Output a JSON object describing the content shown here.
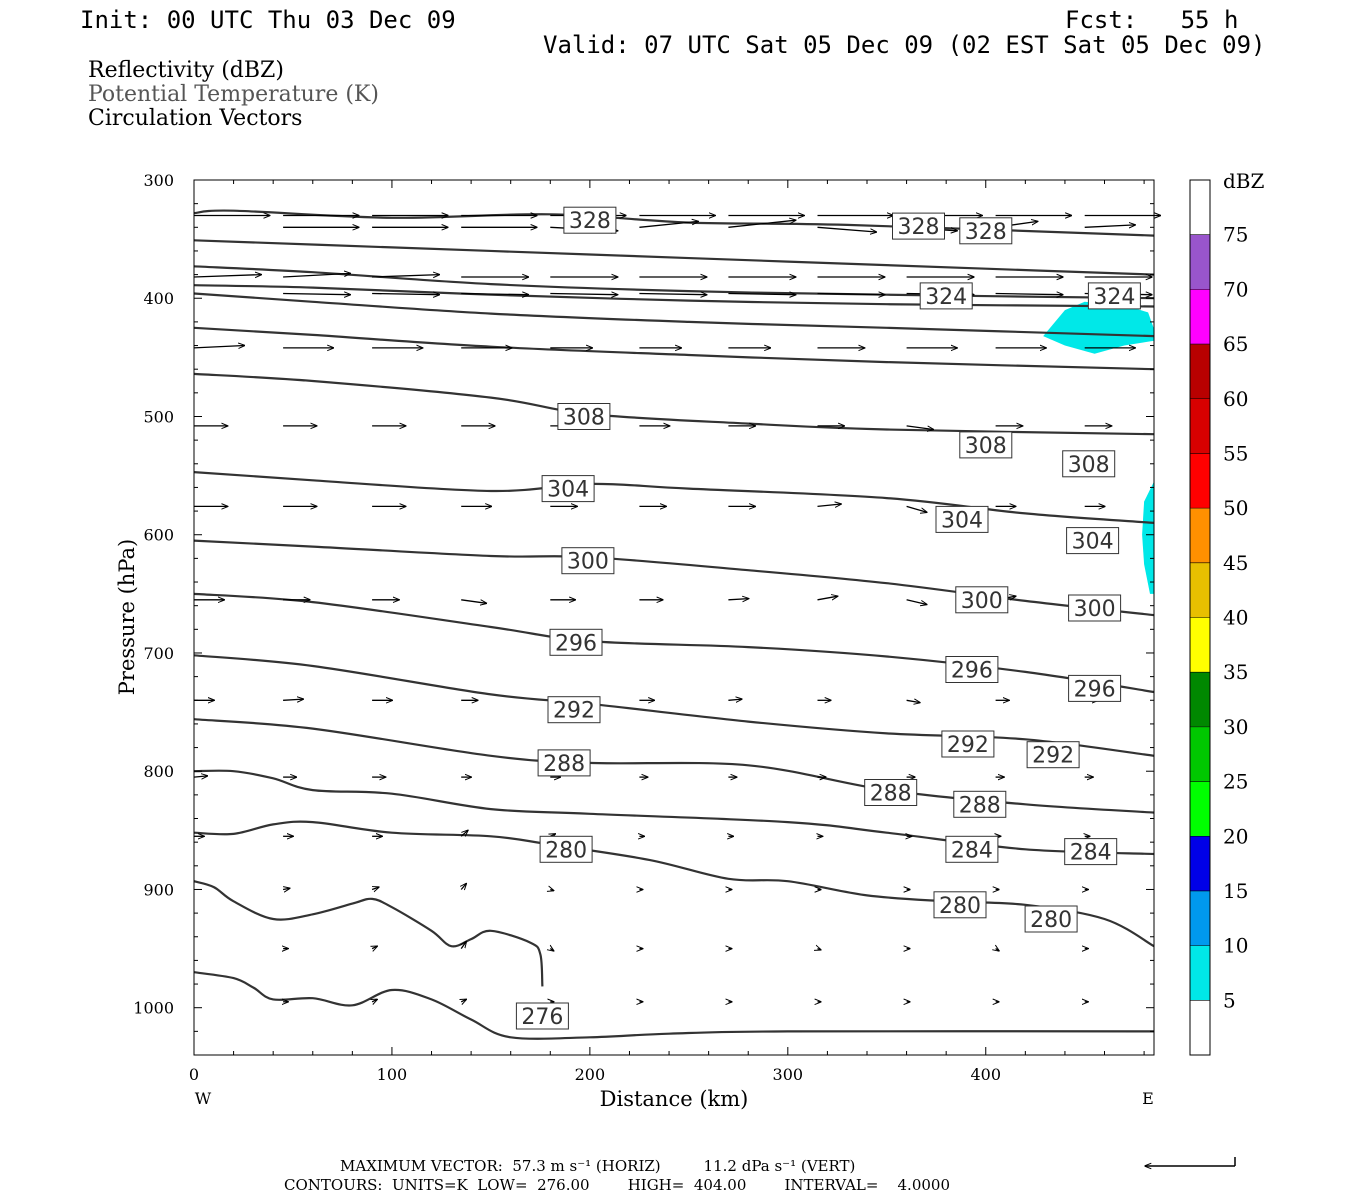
{
  "header": {
    "init": "Init: 00 UTC Thu 03 Dec 09",
    "fcst": "Fcst:   55 h",
    "valid": "Valid: 07 UTC Sat 05 Dec 09 (02 EST Sat 05 Dec 09)"
  },
  "fields": [
    "Reflectivity (dBZ)",
    "Potential Temperature (K)",
    "Circulation Vectors"
  ],
  "footer": {
    "max_vector": "MAXIMUM VECTOR:  57.3 m s⁻¹ (HORIZ)         11.2 dPa s⁻¹ (VERT)",
    "contours": "CONTOURS:  UNITS=K  LOW=  276.00        HIGH=  404.00        INTERVAL=    4.0000"
  },
  "colors": {
    "contour": "#333333",
    "reflectivity_5": "#00e8e8"
  },
  "chart_data": {
    "type": "cross-section",
    "xlabel": "Distance (km)",
    "ylabel": "Pressure (hPa)",
    "xlim": [
      0,
      485
    ],
    "ylim": [
      300,
      1040
    ],
    "x_ticks": [
      0,
      100,
      200,
      300,
      400
    ],
    "y_ticks": [
      300,
      400,
      500,
      600,
      700,
      800,
      900,
      1000
    ],
    "x_end_labels": [
      "W",
      "E"
    ],
    "colorbar": {
      "title": "dBZ",
      "labels": [
        "5",
        "10",
        "15",
        "20",
        "25",
        "30",
        "35",
        "40",
        "45",
        "50",
        "55",
        "60",
        "65",
        "70",
        "75"
      ],
      "colors": [
        "#ffffff",
        "#00e8e8",
        "#0099ee",
        "#0000e8",
        "#00ff00",
        "#00c800",
        "#008800",
        "#ffff00",
        "#e8c000",
        "#ff9000",
        "#ff0000",
        "#d80000",
        "#b80000",
        "#ff00ff",
        "#9955cc",
        "#ffffff"
      ]
    },
    "contour_labels": [
      {
        "text": "328",
        "x": 200,
        "p": 334
      },
      {
        "text": "328",
        "x": 366,
        "p": 339
      },
      {
        "text": "328",
        "x": 400,
        "p": 343
      },
      {
        "text": "324",
        "x": 380,
        "p": 398
      },
      {
        "text": "324",
        "x": 465,
        "p": 398
      },
      {
        "text": "308",
        "x": 197,
        "p": 500
      },
      {
        "text": "308",
        "x": 400,
        "p": 524
      },
      {
        "text": "308",
        "x": 452,
        "p": 540
      },
      {
        "text": "304",
        "x": 189,
        "p": 561
      },
      {
        "text": "304",
        "x": 388,
        "p": 587
      },
      {
        "text": "304",
        "x": 454,
        "p": 605
      },
      {
        "text": "300",
        "x": 199,
        "p": 622
      },
      {
        "text": "300",
        "x": 398,
        "p": 655
      },
      {
        "text": "300",
        "x": 455,
        "p": 662
      },
      {
        "text": "296",
        "x": 193,
        "p": 691
      },
      {
        "text": "296",
        "x": 393,
        "p": 714
      },
      {
        "text": "296",
        "x": 455,
        "p": 730
      },
      {
        "text": "292",
        "x": 192,
        "p": 748
      },
      {
        "text": "292",
        "x": 391,
        "p": 777
      },
      {
        "text": "292",
        "x": 434,
        "p": 786
      },
      {
        "text": "288",
        "x": 187,
        "p": 793
      },
      {
        "text": "288",
        "x": 352,
        "p": 818
      },
      {
        "text": "288",
        "x": 397,
        "p": 828
      },
      {
        "text": "280",
        "x": 188,
        "p": 866
      },
      {
        "text": "284",
        "x": 393,
        "p": 866
      },
      {
        "text": "284",
        "x": 453,
        "p": 868
      },
      {
        "text": "280",
        "x": 387,
        "p": 913
      },
      {
        "text": "280",
        "x": 433,
        "p": 925
      },
      {
        "text": "276",
        "x": 176,
        "p": 1007
      }
    ],
    "isentropes": [
      [
        [
          0,
          328
        ],
        [
          20,
          326
        ],
        [
          100,
          332
        ],
        [
          180,
          329
        ],
        [
          250,
          336
        ],
        [
          330,
          338
        ],
        [
          485,
          347
        ]
      ],
      [
        [
          0,
          351
        ],
        [
          100,
          357
        ],
        [
          200,
          363
        ],
        [
          300,
          369
        ],
        [
          400,
          375
        ],
        [
          485,
          380
        ]
      ],
      [
        [
          0,
          373
        ],
        [
          60,
          378
        ],
        [
          150,
          388
        ],
        [
          250,
          394
        ],
        [
          350,
          397
        ],
        [
          485,
          400
        ]
      ],
      [
        [
          0,
          389
        ],
        [
          60,
          391
        ],
        [
          150,
          397
        ],
        [
          250,
          402
        ],
        [
          350,
          405
        ],
        [
          485,
          407
        ]
      ],
      [
        [
          0,
          396
        ],
        [
          60,
          403
        ],
        [
          150,
          413
        ],
        [
          250,
          420
        ],
        [
          350,
          425
        ],
        [
          485,
          432
        ]
      ],
      [
        [
          0,
          425
        ],
        [
          60,
          431
        ],
        [
          150,
          441
        ],
        [
          250,
          448
        ],
        [
          350,
          454
        ],
        [
          485,
          460
        ]
      ],
      [
        [
          0,
          464
        ],
        [
          60,
          470
        ],
        [
          150,
          484
        ],
        [
          200,
          498
        ],
        [
          280,
          506
        ],
        [
          350,
          511
        ],
        [
          485,
          515
        ]
      ],
      [
        [
          0,
          547
        ],
        [
          60,
          554
        ],
        [
          150,
          563
        ],
        [
          200,
          557
        ],
        [
          250,
          561
        ],
        [
          350,
          569
        ],
        [
          420,
          582
        ],
        [
          485,
          590
        ]
      ],
      [
        [
          0,
          605
        ],
        [
          60,
          610
        ],
        [
          150,
          618
        ],
        [
          200,
          619
        ],
        [
          280,
          630
        ],
        [
          350,
          641
        ],
        [
          420,
          656
        ],
        [
          485,
          668
        ]
      ],
      [
        [
          0,
          650
        ],
        [
          60,
          657
        ],
        [
          150,
          678
        ],
        [
          200,
          690
        ],
        [
          280,
          695
        ],
        [
          350,
          703
        ],
        [
          420,
          716
        ],
        [
          485,
          733
        ]
      ],
      [
        [
          0,
          702
        ],
        [
          60,
          711
        ],
        [
          150,
          735
        ],
        [
          200,
          743
        ],
        [
          280,
          758
        ],
        [
          350,
          768
        ],
        [
          420,
          773
        ],
        [
          485,
          787
        ]
      ],
      [
        [
          0,
          756
        ],
        [
          60,
          764
        ],
        [
          150,
          787
        ],
        [
          200,
          793
        ],
        [
          280,
          795
        ],
        [
          350,
          816
        ],
        [
          420,
          828
        ],
        [
          485,
          835
        ]
      ],
      [
        [
          0,
          800
        ],
        [
          20,
          800
        ],
        [
          40,
          806
        ],
        [
          60,
          816
        ],
        [
          100,
          819
        ],
        [
          150,
          832
        ],
        [
          200,
          836
        ],
        [
          300,
          843
        ],
        [
          350,
          852
        ],
        [
          420,
          866
        ],
        [
          485,
          870
        ]
      ],
      [
        [
          0,
          852
        ],
        [
          20,
          853
        ],
        [
          40,
          845
        ],
        [
          60,
          843
        ],
        [
          100,
          852
        ],
        [
          150,
          855
        ],
        [
          180,
          862
        ],
        [
          230,
          875
        ],
        [
          270,
          891
        ],
        [
          300,
          893
        ],
        [
          340,
          905
        ],
        [
          380,
          910
        ],
        [
          420,
          913
        ],
        [
          460,
          925
        ],
        [
          485,
          948
        ]
      ],
      [
        [
          0,
          893
        ],
        [
          10,
          898
        ],
        [
          20,
          910
        ],
        [
          40,
          925
        ],
        [
          60,
          921
        ],
        [
          80,
          912
        ],
        [
          90,
          908
        ],
        [
          100,
          915
        ],
        [
          120,
          935
        ],
        [
          130,
          948
        ],
        [
          140,
          942
        ],
        [
          150,
          935
        ],
        [
          170,
          945
        ],
        [
          175,
          955
        ],
        [
          176,
          982
        ]
      ],
      [
        [
          0,
          970
        ],
        [
          20,
          975
        ],
        [
          30,
          983
        ],
        [
          40,
          993
        ],
        [
          60,
          992
        ],
        [
          80,
          998
        ],
        [
          100,
          985
        ],
        [
          120,
          993
        ],
        [
          140,
          1010
        ],
        [
          160,
          1025
        ],
        [
          200,
          1025
        ],
        [
          240,
          1022
        ],
        [
          300,
          1020
        ],
        [
          485,
          1020
        ]
      ]
    ],
    "reflectivity_regions": [
      {
        "dbz": 5,
        "points": [
          [
            429,
            432
          ],
          [
            440,
            410
          ],
          [
            450,
            403
          ],
          [
            470,
            406
          ],
          [
            482,
            412
          ],
          [
            485,
            426
          ],
          [
            485,
            436
          ],
          [
            470,
            440
          ],
          [
            455,
            447
          ],
          [
            440,
            440
          ]
        ]
      },
      {
        "dbz": 5,
        "points": [
          [
            485,
            555
          ],
          [
            480,
            572
          ],
          [
            479,
            600
          ],
          [
            480,
            625
          ],
          [
            483,
            650
          ],
          [
            485,
            650
          ]
        ]
      }
    ],
    "vectors": [
      {
        "p": 330,
        "x": [
          0,
          45,
          90,
          135,
          180,
          225,
          270,
          315,
          360,
          405,
          450
        ],
        "dx": [
          45,
          45,
          45,
          45,
          45,
          45,
          45,
          45,
          45,
          45,
          45
        ],
        "dp": [
          0,
          0,
          0,
          0,
          0,
          0,
          0,
          0,
          0,
          0,
          0
        ]
      },
      {
        "p": 340,
        "x": [
          45,
          90,
          135,
          180,
          225,
          270,
          315,
          360,
          405,
          450
        ],
        "dx": [
          45,
          45,
          45,
          40,
          35,
          40,
          35,
          30,
          25,
          30
        ],
        "dp": [
          0,
          0,
          0,
          3,
          -5,
          -6,
          4,
          3,
          -5,
          -2
        ]
      },
      {
        "p": 382,
        "x": [
          0,
          45,
          90,
          135,
          180,
          225,
          270,
          315,
          360,
          405,
          450
        ],
        "dx": [
          40,
          40,
          40,
          40,
          40,
          40,
          40,
          40,
          40,
          40,
          40
        ],
        "dp": [
          -2,
          -3,
          -2,
          0,
          0,
          0,
          0,
          0,
          0,
          0,
          0
        ]
      },
      {
        "p": 396,
        "x": [
          45,
          90,
          135,
          180,
          225,
          270,
          315,
          360,
          405,
          450
        ],
        "dx": [
          40,
          40,
          40,
          40,
          40,
          40,
          40,
          40,
          40,
          40
        ],
        "dp": [
          1,
          1,
          1,
          1,
          1,
          1,
          1,
          1,
          1,
          1
        ]
      },
      {
        "p": 442,
        "x": [
          0,
          45,
          90,
          135,
          180,
          225,
          270,
          315,
          360,
          405,
          450
        ],
        "dx": [
          30,
          30,
          30,
          30,
          25,
          25,
          25,
          28,
          30,
          30,
          30
        ],
        "dp": [
          -2,
          0,
          0,
          0,
          0,
          0,
          0,
          0,
          0,
          0,
          0
        ]
      },
      {
        "p": 508,
        "x": [
          0,
          45,
          90,
          135,
          180,
          225,
          270,
          315,
          360,
          405,
          450
        ],
        "dx": [
          20,
          20,
          20,
          20,
          18,
          18,
          16,
          16,
          16,
          16,
          16
        ],
        "dp": [
          0,
          0,
          0,
          0,
          0,
          0,
          0,
          0,
          3,
          0,
          0
        ]
      },
      {
        "p": 576,
        "x": [
          0,
          45,
          90,
          135,
          180,
          225,
          270,
          315,
          360,
          405,
          450
        ],
        "dx": [
          20,
          20,
          20,
          18,
          16,
          16,
          16,
          14,
          12,
          12,
          12
        ],
        "dp": [
          0,
          0,
          0,
          0,
          0,
          0,
          0,
          -2,
          5,
          0,
          0
        ]
      },
      {
        "p": 655,
        "x": [
          0,
          45,
          90,
          135,
          180,
          225,
          270,
          315,
          360,
          405,
          450
        ],
        "dx": [
          18,
          16,
          16,
          15,
          15,
          14,
          12,
          12,
          12,
          12,
          10
        ],
        "dp": [
          0,
          0,
          0,
          3,
          0,
          0,
          -1,
          -3,
          4,
          -3,
          0
        ]
      },
      {
        "p": 740,
        "x": [
          0,
          45,
          90,
          135,
          180,
          225,
          270,
          315,
          360,
          405,
          450
        ],
        "dx": [
          12,
          12,
          12,
          10,
          10,
          9,
          8,
          8,
          8,
          8,
          8
        ],
        "dp": [
          0,
          -1,
          0,
          0,
          0,
          0,
          -1,
          0,
          2,
          0,
          0
        ]
      },
      {
        "p": 805,
        "x": [
          0,
          45,
          90,
          135,
          180,
          225,
          270,
          315,
          360,
          405,
          450
        ],
        "dx": [
          8,
          8,
          8,
          6,
          6,
          5,
          5,
          5,
          5,
          5,
          5
        ],
        "dp": [
          -1,
          0,
          0,
          0,
          0,
          0,
          0,
          0,
          0,
          0,
          0
        ]
      },
      {
        "p": 855,
        "x": [
          0,
          45,
          90,
          135,
          180,
          225,
          270,
          315,
          360,
          405,
          450
        ],
        "dx": [
          6,
          6,
          6,
          4,
          3,
          3,
          3,
          3,
          3,
          3,
          3
        ],
        "dp": [
          0,
          0,
          0,
          -5,
          -2,
          0,
          0,
          0,
          0,
          0,
          0
        ]
      },
      {
        "p": 900,
        "x": [
          45,
          90,
          135,
          180,
          225,
          270,
          315,
          360,
          405,
          450
        ],
        "dx": [
          4,
          4,
          3,
          2,
          2,
          2,
          2,
          2,
          2,
          2
        ],
        "dp": [
          -1,
          -2,
          -5,
          1,
          0,
          0,
          0,
          0,
          0,
          0
        ]
      },
      {
        "p": 950,
        "x": [
          45,
          90,
          135,
          180,
          225,
          270,
          315,
          360,
          405,
          450
        ],
        "dx": [
          3,
          3,
          3,
          2,
          2,
          2,
          2,
          2,
          2,
          2
        ],
        "dp": [
          0,
          -2,
          -6,
          2,
          0,
          0,
          1,
          0,
          2,
          0
        ]
      },
      {
        "p": 995,
        "x": [
          45,
          90,
          135,
          180,
          225,
          270,
          315,
          360,
          405,
          450
        ],
        "dx": [
          3,
          3,
          3,
          2,
          2,
          2,
          2,
          2,
          2,
          2
        ],
        "dp": [
          0,
          -2,
          -2,
          0,
          0,
          0,
          0,
          0,
          0,
          0
        ]
      }
    ],
    "reference_vector": {
      "label": ""
    }
  }
}
